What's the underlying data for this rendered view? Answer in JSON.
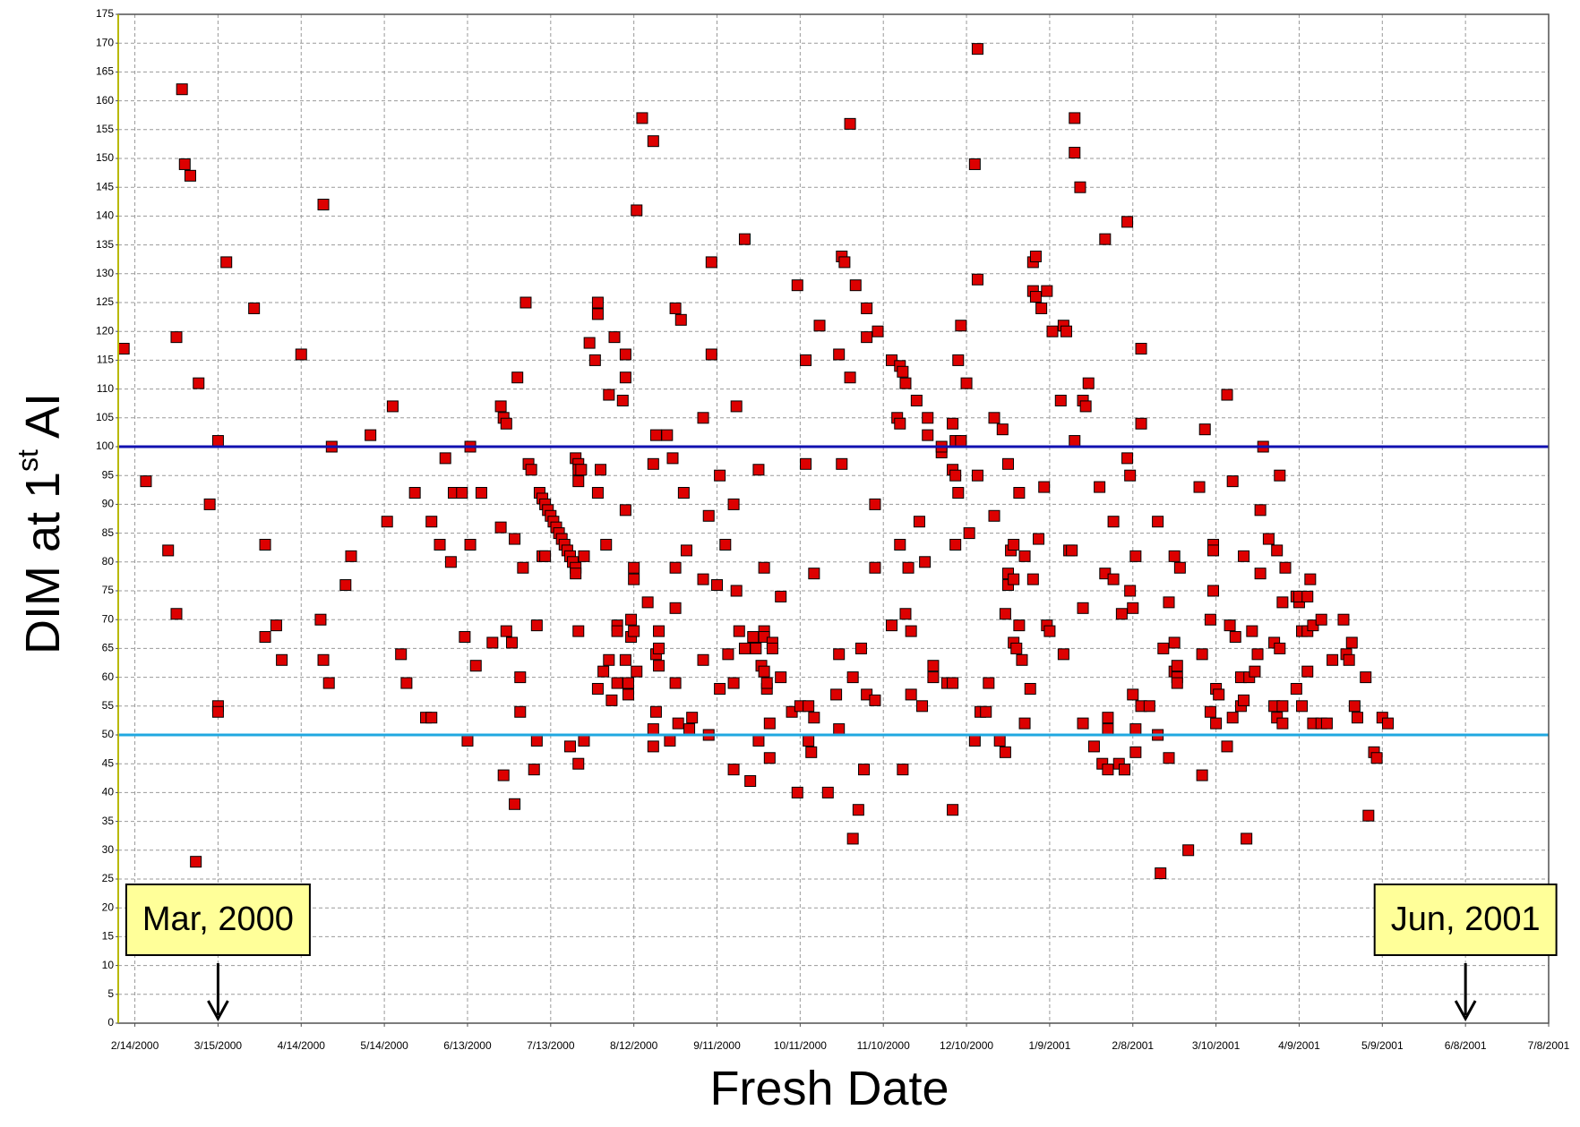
{
  "chart_data": {
    "type": "scatter",
    "x_label": "Fresh Date",
    "y_label_parts": [
      "DIM at 1",
      "st",
      " AI"
    ],
    "color": "#dd0000",
    "grid": true,
    "xlim": [
      "2000-02-08",
      "2001-07-08"
    ],
    "xticks": [
      {
        "value": "2000-02-14",
        "label": "2/14/2000"
      },
      {
        "value": "2000-03-15",
        "label": "3/15/2000"
      },
      {
        "value": "2000-04-14",
        "label": "4/14/2000"
      },
      {
        "value": "2000-05-14",
        "label": "5/14/2000"
      },
      {
        "value": "2000-06-13",
        "label": "6/13/2000"
      },
      {
        "value": "2000-07-13",
        "label": "7/13/2000"
      },
      {
        "value": "2000-08-12",
        "label": "8/12/2000"
      },
      {
        "value": "2000-09-11",
        "label": "9/11/2000"
      },
      {
        "value": "2000-10-11",
        "label": "10/11/2000"
      },
      {
        "value": "2000-11-10",
        "label": "11/10/2000"
      },
      {
        "value": "2000-12-10",
        "label": "12/10/2000"
      },
      {
        "value": "2001-01-09",
        "label": "1/9/2001"
      },
      {
        "value": "2001-02-08",
        "label": "2/8/2001"
      },
      {
        "value": "2001-03-10",
        "label": "3/10/2001"
      },
      {
        "value": "2001-04-09",
        "label": "4/9/2001"
      },
      {
        "value": "2001-05-09",
        "label": "5/9/2001"
      },
      {
        "value": "2001-06-08",
        "label": "6/8/2001"
      },
      {
        "value": "2001-07-08",
        "label": "7/8/2001"
      }
    ],
    "ylim": [
      0,
      175
    ],
    "yticks": [
      0,
      5,
      10,
      15,
      20,
      25,
      30,
      35,
      40,
      45,
      50,
      55,
      60,
      65,
      70,
      75,
      80,
      85,
      90,
      95,
      100,
      105,
      110,
      115,
      120,
      125,
      130,
      135,
      140,
      145,
      150,
      155,
      160,
      165,
      170,
      175
    ],
    "reference_lines": [
      {
        "value": 100,
        "color": "#1010b0"
      },
      {
        "value": 50,
        "color": "#20a8e0"
      }
    ],
    "annotations": [
      {
        "text": "Mar, 2000",
        "x": "2000-03-15"
      },
      {
        "text": "Jun, 2001",
        "x": "2001-06-08"
      }
    ],
    "x": [
      "2000-02-10",
      "2000-02-18",
      "2000-02-26",
      "2000-02-29",
      "2000-02-29",
      "2000-03-02",
      "2000-03-03",
      "2000-03-05",
      "2000-03-07",
      "2000-03-08",
      "2000-03-12",
      "2000-03-15",
      "2000-03-15",
      "2000-03-15",
      "2000-03-18",
      "2000-03-28",
      "2000-04-01",
      "2000-04-01",
      "2000-04-05",
      "2000-04-07",
      "2000-04-14",
      "2000-04-21",
      "2000-04-22",
      "2000-04-22",
      "2000-04-24",
      "2000-04-25",
      "2000-04-30",
      "2000-05-02",
      "2000-05-09",
      "2000-05-15",
      "2000-05-17",
      "2000-05-20",
      "2000-05-22",
      "2000-05-25",
      "2000-05-29",
      "2000-05-31",
      "2000-05-31",
      "2000-06-03",
      "2000-06-05",
      "2000-06-07",
      "2000-06-08",
      "2000-06-11",
      "2000-06-12",
      "2000-06-13",
      "2000-06-14",
      "2000-06-14",
      "2000-06-16",
      "2000-06-18",
      "2000-06-22",
      "2000-06-25",
      "2000-06-25",
      "2000-06-26",
      "2000-06-27",
      "2000-06-26",
      "2000-06-27",
      "2000-06-29",
      "2000-06-30",
      "2000-06-30",
      "2000-07-01",
      "2000-07-02",
      "2000-07-02",
      "2000-07-03",
      "2000-07-04",
      "2000-07-05",
      "2000-07-06",
      "2000-07-07",
      "2000-07-08",
      "2000-07-08",
      "2000-07-09",
      "2000-07-10",
      "2000-07-10",
      "2000-07-11",
      "2000-07-11",
      "2000-07-12",
      "2000-07-13",
      "2000-07-14",
      "2000-07-15",
      "2000-07-16",
      "2000-07-17",
      "2000-07-18",
      "2000-07-19",
      "2000-07-20",
      "2000-07-20",
      "2000-07-21",
      "2000-07-22",
      "2000-07-22",
      "2000-07-22",
      "2000-07-23",
      "2000-07-23",
      "2000-07-23",
      "2000-07-23",
      "2000-07-23",
      "2000-07-24",
      "2000-07-25",
      "2000-07-25",
      "2000-07-27",
      "2000-07-29",
      "2000-07-30",
      "2000-07-30",
      "2000-07-30",
      "2000-07-30",
      "2000-07-31",
      "2000-08-01",
      "2000-08-02",
      "2000-08-03",
      "2000-08-03",
      "2000-08-04",
      "2000-08-05",
      "2000-08-06",
      "2000-08-06",
      "2000-08-06",
      "2000-08-08",
      "2000-08-09",
      "2000-08-09",
      "2000-08-09",
      "2000-08-09",
      "2000-08-10",
      "2000-08-10",
      "2000-08-11",
      "2000-08-11",
      "2000-08-12",
      "2000-08-12",
      "2000-08-12",
      "2000-08-13",
      "2000-08-13",
      "2000-08-15",
      "2000-08-17",
      "2000-08-19",
      "2000-08-19",
      "2000-08-19",
      "2000-08-19",
      "2000-08-20",
      "2000-08-20",
      "2000-08-20",
      "2000-08-21",
      "2000-08-21",
      "2000-08-21",
      "2000-08-24",
      "2000-08-25",
      "2000-08-26",
      "2000-08-27",
      "2000-08-27",
      "2000-08-27",
      "2000-08-27",
      "2000-08-28",
      "2000-08-29",
      "2000-08-30",
      "2000-08-31",
      "2000-09-01",
      "2000-09-02",
      "2000-09-06",
      "2000-09-06",
      "2000-09-06",
      "2000-09-08",
      "2000-09-08",
      "2000-09-09",
      "2000-09-09",
      "2000-09-11",
      "2000-09-12",
      "2000-09-12",
      "2000-09-14",
      "2000-09-15",
      "2000-09-17",
      "2000-09-17",
      "2000-09-17",
      "2000-09-18",
      "2000-09-18",
      "2000-09-19",
      "2000-09-21",
      "2000-09-21",
      "2000-09-23",
      "2000-09-24",
      "2000-09-25",
      "2000-09-26",
      "2000-09-26",
      "2000-09-27",
      "2000-09-28",
      "2000-09-28",
      "2000-09-28",
      "2000-09-28",
      "2000-09-29",
      "2000-09-29",
      "2000-09-30",
      "2000-09-30",
      "2000-10-01",
      "2000-10-01",
      "2000-10-04",
      "2000-10-04",
      "2000-10-08",
      "2000-10-10",
      "2000-10-10",
      "2000-10-11",
      "2000-10-13",
      "2000-10-13",
      "2000-10-14",
      "2000-10-14",
      "2000-10-15",
      "2000-10-16",
      "2000-10-16",
      "2000-10-18",
      "2000-10-21",
      "2000-10-24",
      "2000-10-25",
      "2000-10-25",
      "2000-10-25",
      "2000-10-26",
      "2000-10-26",
      "2000-10-27",
      "2000-10-29",
      "2000-10-29",
      "2000-10-30",
      "2000-10-30",
      "2000-10-31",
      "2000-11-01",
      "2000-11-02",
      "2000-11-03",
      "2000-11-04",
      "2000-11-04",
      "2000-11-04",
      "2000-11-07",
      "2000-11-07",
      "2000-11-07",
      "2000-11-08",
      "2000-11-13",
      "2000-11-13",
      "2000-11-15",
      "2000-11-16",
      "2000-11-16",
      "2000-11-16",
      "2000-11-17",
      "2000-11-17",
      "2000-11-18",
      "2000-11-18",
      "2000-11-19",
      "2000-11-20",
      "2000-11-20",
      "2000-11-22",
      "2000-11-23",
      "2000-11-24",
      "2000-11-25",
      "2000-11-26",
      "2000-11-26",
      "2000-11-28",
      "2000-11-28",
      "2000-12-01",
      "2000-12-01",
      "2000-12-03",
      "2000-12-05",
      "2000-12-05",
      "2000-12-05",
      "2000-12-05",
      "2000-12-06",
      "2000-12-06",
      "2000-12-06",
      "2000-12-07",
      "2000-12-07",
      "2000-12-08",
      "2000-12-08",
      "2000-12-10",
      "2000-12-11",
      "2000-12-13",
      "2000-12-13",
      "2000-12-14",
      "2000-12-14",
      "2000-12-14",
      "2000-12-15",
      "2000-12-17",
      "2000-12-18",
      "2000-12-20",
      "2000-12-20",
      "2000-12-22",
      "2000-12-23",
      "2000-12-24",
      "2000-12-24",
      "2000-12-25",
      "2000-12-25",
      "2000-12-25",
      "2000-12-26",
      "2000-12-27",
      "2000-12-27",
      "2000-12-27",
      "2000-12-28",
      "2000-12-29",
      "2000-12-29",
      "2000-12-30",
      "2000-12-31",
      "2000-12-31",
      "2001-01-02",
      "2001-01-03",
      "2001-01-03",
      "2001-01-03",
      "2001-01-04",
      "2001-01-04",
      "2001-01-05",
      "2001-01-06",
      "2001-01-07",
      "2001-01-08",
      "2001-01-08",
      "2001-01-09",
      "2001-01-10",
      "2001-01-13",
      "2001-01-14",
      "2001-01-14",
      "2001-01-15",
      "2001-01-16",
      "2001-01-17",
      "2001-01-18",
      "2001-01-18",
      "2001-01-18",
      "2001-01-20",
      "2001-01-21",
      "2001-01-21",
      "2001-01-21",
      "2001-01-22",
      "2001-01-23",
      "2001-01-25",
      "2001-01-27",
      "2001-01-28",
      "2001-01-29",
      "2001-01-29",
      "2001-01-30",
      "2001-01-30",
      "2001-01-30",
      "2001-02-01",
      "2001-02-01",
      "2001-02-03",
      "2001-02-04",
      "2001-02-05",
      "2001-02-05",
      "2001-02-06",
      "2001-02-06",
      "2001-02-07",
      "2001-02-07",
      "2001-02-08",
      "2001-02-08",
      "2001-02-09",
      "2001-02-09",
      "2001-02-09",
      "2001-02-11",
      "2001-02-11",
      "2001-02-11",
      "2001-02-14",
      "2001-02-17",
      "2001-02-17",
      "2001-02-18",
      "2001-02-19",
      "2001-02-21",
      "2001-02-21",
      "2001-02-23",
      "2001-02-23",
      "2001-02-23",
      "2001-02-24",
      "2001-02-24",
      "2001-02-24",
      "2001-02-25",
      "2001-02-28",
      "2001-03-04",
      "2001-03-05",
      "2001-03-05",
      "2001-03-06",
      "2001-03-08",
      "2001-03-08",
      "2001-03-09",
      "2001-03-09",
      "2001-03-09",
      "2001-03-10",
      "2001-03-10",
      "2001-03-11",
      "2001-03-14",
      "2001-03-14",
      "2001-03-15",
      "2001-03-16",
      "2001-03-16",
      "2001-03-17",
      "2001-03-19",
      "2001-03-19",
      "2001-03-20",
      "2001-03-20",
      "2001-03-21",
      "2001-03-22",
      "2001-03-23",
      "2001-03-24",
      "2001-03-25",
      "2001-03-26",
      "2001-03-26",
      "2001-03-27",
      "2001-03-29",
      "2001-03-31",
      "2001-03-31",
      "2001-04-01",
      "2001-04-01",
      "2001-04-02",
      "2001-04-02",
      "2001-04-03",
      "2001-04-03",
      "2001-04-03",
      "2001-04-04",
      "2001-04-08",
      "2001-04-08",
      "2001-04-09",
      "2001-04-09",
      "2001-04-10",
      "2001-04-10",
      "2001-04-12",
      "2001-04-12",
      "2001-04-12",
      "2001-04-13",
      "2001-04-14",
      "2001-04-14",
      "2001-04-17",
      "2001-04-17",
      "2001-04-19",
      "2001-04-21",
      "2001-04-25",
      "2001-04-26",
      "2001-04-27",
      "2001-04-28",
      "2001-04-29",
      "2001-04-30",
      "2001-05-03",
      "2001-05-04",
      "2001-05-06",
      "2001-05-07",
      "2001-05-09",
      "2001-05-11"
    ],
    "values": [
      117,
      94,
      82,
      119,
      71,
      162,
      149,
      147,
      28,
      111,
      90,
      101,
      55,
      54,
      132,
      124,
      83,
      67,
      69,
      63,
      116,
      70,
      142,
      63,
      59,
      100,
      76,
      81,
      102,
      87,
      107,
      64,
      59,
      92,
      53,
      53,
      87,
      83,
      98,
      80,
      92,
      92,
      67,
      49,
      100,
      83,
      62,
      92,
      66,
      86,
      107,
      105,
      104,
      43,
      68,
      66,
      38,
      84,
      112,
      60,
      54,
      79,
      125,
      97,
      96,
      44,
      49,
      69,
      92,
      91,
      81,
      90,
      81,
      89,
      88,
      87,
      86,
      85,
      84,
      83,
      82,
      81,
      48,
      80,
      79,
      78,
      98,
      97,
      96,
      94,
      68,
      45,
      96,
      81,
      49,
      118,
      115,
      125,
      123,
      92,
      58,
      96,
      61,
      83,
      109,
      63,
      56,
      119,
      69,
      68,
      59,
      108,
      89,
      116,
      112,
      63,
      59,
      57,
      67,
      70,
      77,
      68,
      79,
      141,
      61,
      157,
      73,
      153,
      97,
      48,
      51,
      102,
      54,
      64,
      68,
      65,
      62,
      102,
      49,
      98,
      79,
      59,
      72,
      124,
      52,
      122,
      92,
      82,
      51,
      53,
      63,
      105,
      77,
      50,
      88,
      132,
      116,
      76,
      95,
      58,
      83,
      64,
      44,
      90,
      59,
      107,
      75,
      68,
      136,
      65,
      42,
      67,
      65,
      96,
      49,
      62,
      79,
      61,
      68,
      67,
      58,
      59,
      46,
      52,
      66,
      65,
      60,
      74,
      54,
      40,
      128,
      55,
      97,
      115,
      55,
      49,
      47,
      53,
      78,
      121,
      40,
      57,
      64,
      51,
      116,
      97,
      133,
      132,
      156,
      112,
      60,
      32,
      128,
      37,
      65,
      44,
      57,
      124,
      119,
      56,
      90,
      79,
      120,
      69,
      115,
      105,
      104,
      83,
      114,
      44,
      113,
      71,
      111,
      79,
      68,
      57,
      108,
      87,
      55,
      80,
      105,
      102,
      62,
      60,
      99,
      100,
      59,
      104,
      96,
      37,
      59,
      95,
      83,
      101,
      92,
      115,
      121,
      101,
      111,
      85,
      149,
      49,
      169,
      129,
      95,
      54,
      54,
      59,
      88,
      105,
      49,
      103,
      47,
      71,
      97,
      78,
      76,
      82,
      77,
      83,
      66,
      65,
      69,
      92,
      63,
      52,
      81,
      58,
      132,
      77,
      127,
      133,
      126,
      84,
      124,
      93,
      127,
      69,
      68,
      120,
      108,
      64,
      121,
      120,
      82,
      82,
      157,
      151,
      101,
      145,
      72,
      52,
      108,
      107,
      111,
      48,
      93,
      45,
      136,
      78,
      53,
      51,
      44,
      77,
      87,
      45,
      71,
      44,
      44,
      139,
      98,
      75,
      95,
      57,
      72,
      47,
      51,
      81,
      55,
      117,
      104,
      55,
      87,
      50,
      26,
      65,
      73,
      46,
      81,
      66,
      61,
      62,
      60,
      59,
      79,
      30,
      93,
      64,
      43,
      103,
      70,
      54,
      83,
      75,
      82,
      52,
      58,
      57,
      48,
      109,
      69,
      94,
      53,
      67,
      60,
      55,
      56,
      81,
      32,
      60,
      68,
      61,
      64,
      89,
      78,
      100,
      84,
      66,
      55,
      53,
      82,
      95,
      65,
      73,
      52,
      55,
      79,
      74,
      58,
      73,
      74,
      55,
      68,
      68,
      61,
      74,
      77,
      52,
      69,
      70,
      52,
      52,
      63,
      70,
      64,
      63,
      66,
      55,
      53,
      60,
      36,
      47,
      46,
      53,
      52
    ]
  }
}
